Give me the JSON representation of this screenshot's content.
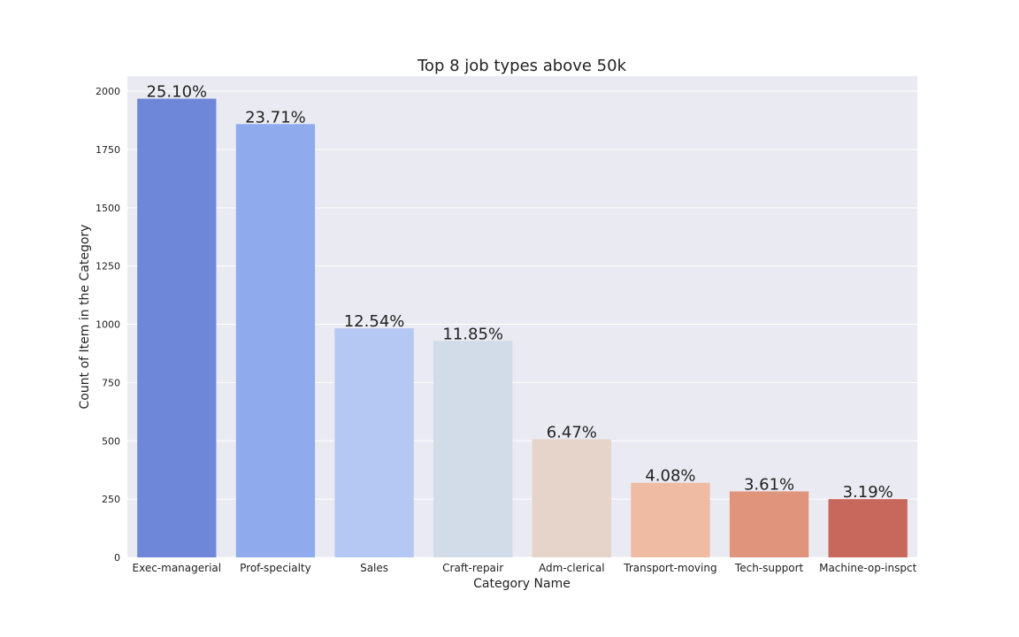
{
  "chart_data": {
    "type": "bar",
    "title": "Top 8 job types above 50k",
    "xlabel": "Category Name",
    "ylabel": "Count of Item in the Category",
    "categories": [
      "Exec-managerial",
      "Prof-specialty",
      "Sales",
      "Craft-repair",
      "Adm-clerical",
      "Transport-moving",
      "Tech-support",
      "Machine-op-inspct"
    ],
    "values": [
      1968,
      1859,
      983,
      929,
      507,
      320,
      283,
      250
    ],
    "data_labels": [
      "25.10%",
      "23.71%",
      "12.54%",
      "11.85%",
      "6.47%",
      "4.08%",
      "3.61%",
      "3.19%"
    ],
    "colors": [
      "#6f87d8",
      "#8fabee",
      "#b5c7f3",
      "#d2dbe8",
      "#e6d4cb",
      "#efbba3",
      "#e0947b",
      "#c8675b"
    ],
    "ylim": [
      0,
      2065
    ],
    "yticks": [
      0,
      250,
      500,
      750,
      1000,
      1250,
      1500,
      1750,
      2000
    ],
    "ytick_labels": [
      "0",
      "250",
      "500",
      "750",
      "1000",
      "1250",
      "1500",
      "1750",
      "2000"
    ],
    "grid": true,
    "background": "#eaeaf2",
    "grid_color": "#ffffff"
  }
}
